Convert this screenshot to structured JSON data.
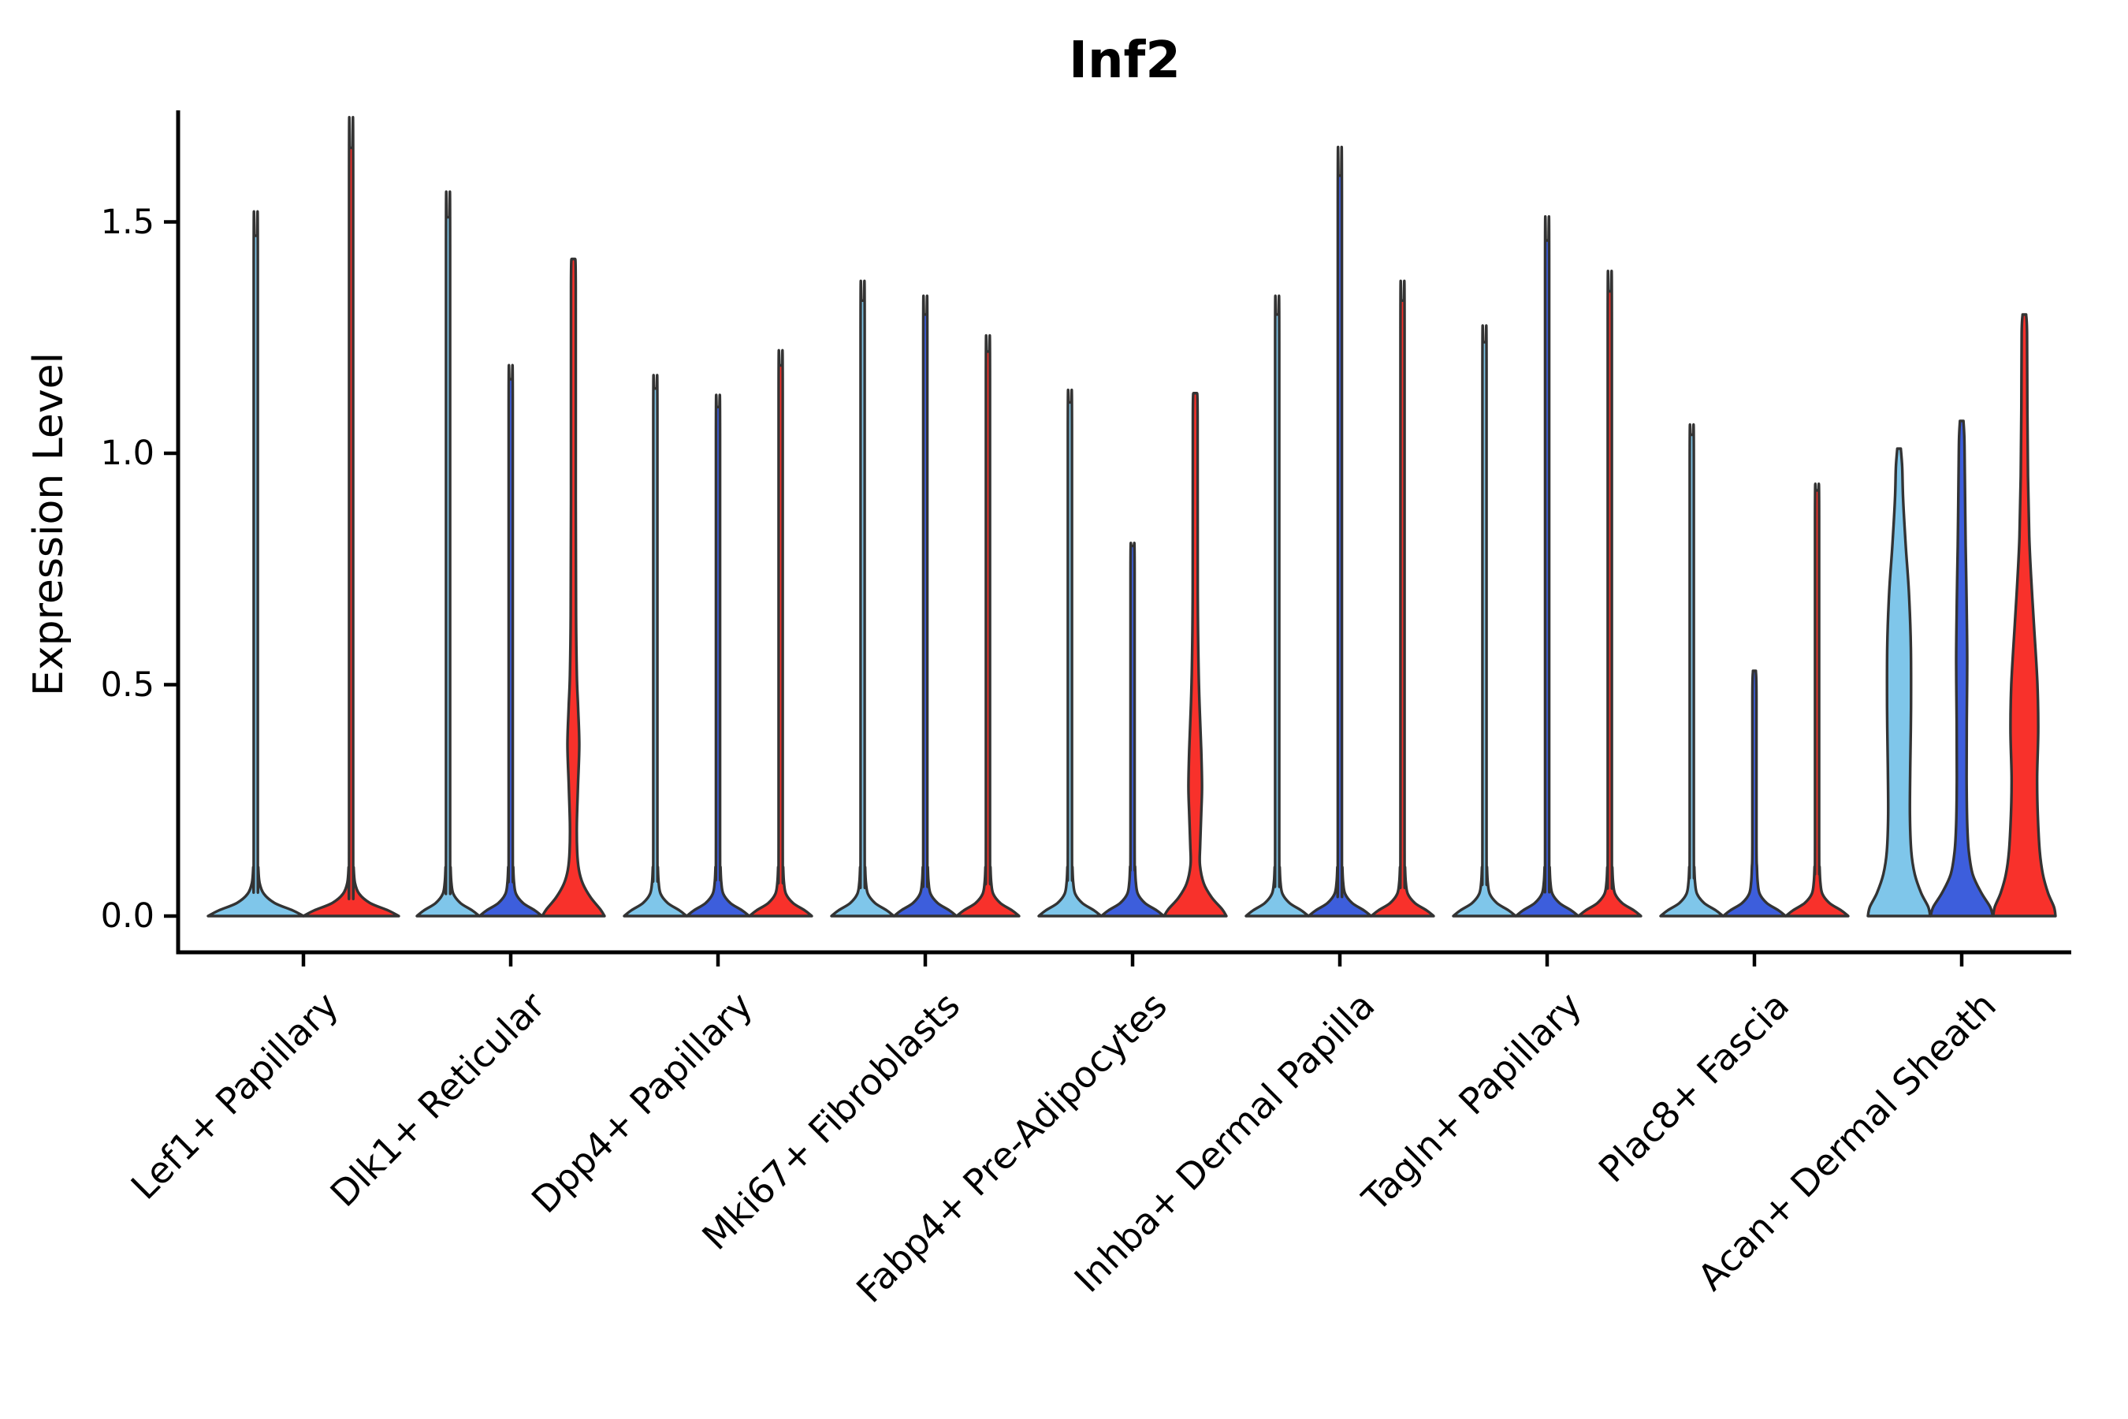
{
  "title": "Inf2",
  "ylabel": "Expression Level",
  "chart_data": {
    "type": "violin",
    "title": "Inf2",
    "xlabel": "",
    "ylabel": "Expression Level",
    "ylim": [
      -0.078,
      1.74
    ],
    "yticks": [
      "0.0",
      "0.5",
      "1.0",
      "1.5"
    ],
    "ytick_values": [
      0.0,
      0.5,
      1.0,
      1.5
    ],
    "grid": false,
    "legend": "none",
    "categories": [
      "Lef1+ Papillary",
      "Dlk1+ Reticular",
      "Dpp4+ Papillary",
      "Mki67+ Fibroblasts",
      "Fabp4+ Pre-Adipocytes",
      "Inhba+ Dermal Papilla",
      "Tagln+ Papillary",
      "Plac8+ Fascia",
      "Acan+ Dermal Sheath"
    ],
    "palette": {
      "light_blue": "#7FC6EA",
      "royal_blue": "#3D5EDC",
      "red": "#F8312B",
      "outline": "#333333",
      "axis": "#000000"
    },
    "note": "Each group shows up to 3 violins; most are collapsed spikes at expression 0 with a thin tail to max. max = top of violin tail in expression units. profile = [expression_value, half_width_px] pairs for violins with visible density bulges.",
    "groups": [
      {
        "label": "Lef1+ Papillary",
        "violins": [
          {
            "fill": "#7FC6EA",
            "max": 1.47,
            "shape": "spike"
          },
          {
            "fill": "#F8312B",
            "max": 1.66,
            "shape": "spike"
          }
        ]
      },
      {
        "label": "Dlk1+ Reticular",
        "violins": [
          {
            "fill": "#7FC6EA",
            "max": 1.51,
            "shape": "spike"
          },
          {
            "fill": "#3D5EDC",
            "max": 1.16,
            "shape": "spike"
          },
          {
            "fill": "#F8312B",
            "max": 1.42,
            "shape": "profile",
            "profile": [
              [
                0,
                39.5
              ],
              [
                0.015,
                34
              ],
              [
                0.04,
                22
              ],
              [
                0.07,
                12
              ],
              [
                0.1,
                7
              ],
              [
                0.14,
                4.8
              ],
              [
                0.2,
                4.4
              ],
              [
                0.28,
                5.8
              ],
              [
                0.37,
                7.5
              ],
              [
                0.45,
                6
              ],
              [
                0.52,
                4.4
              ],
              [
                0.65,
                3.4
              ],
              [
                0.9,
                3.0
              ],
              [
                1.36,
                3.0
              ],
              [
                1.42,
                2.0
              ]
            ]
          }
        ]
      },
      {
        "label": "Dpp4+ Papillary",
        "violins": [
          {
            "fill": "#7FC6EA",
            "max": 1.14,
            "shape": "spike"
          },
          {
            "fill": "#3D5EDC",
            "max": 1.1,
            "shape": "spike"
          },
          {
            "fill": "#F8312B",
            "max": 1.19,
            "shape": "spike"
          }
        ]
      },
      {
        "label": "Mki67+ Fibroblasts",
        "violins": [
          {
            "fill": "#7FC6EA",
            "max": 1.33,
            "shape": "spike"
          },
          {
            "fill": "#3D5EDC",
            "max": 1.3,
            "shape": "spike"
          },
          {
            "fill": "#F8312B",
            "max": 1.22,
            "shape": "spike"
          }
        ]
      },
      {
        "label": "Fabp4+ Pre-Adipocytes",
        "violins": [
          {
            "fill": "#7FC6EA",
            "max": 1.11,
            "shape": "spike"
          },
          {
            "fill": "#3D5EDC",
            "max": 0.8,
            "shape": "spike"
          },
          {
            "fill": "#F8312B",
            "max": 1.13,
            "shape": "profile",
            "profile": [
              [
                0,
                39.5
              ],
              [
                0.015,
                34
              ],
              [
                0.04,
                21
              ],
              [
                0.07,
                11
              ],
              [
                0.11,
                6
              ],
              [
                0.15,
                6.2
              ],
              [
                0.22,
                7.6
              ],
              [
                0.28,
                8.6
              ],
              [
                0.36,
                7.6
              ],
              [
                0.45,
                5.6
              ],
              [
                0.54,
                4.2
              ],
              [
                0.7,
                3.2
              ],
              [
                1.08,
                3.0
              ],
              [
                1.13,
                2.0
              ]
            ]
          }
        ]
      },
      {
        "label": "Inhba+ Dermal Papilla",
        "violins": [
          {
            "fill": "#7FC6EA",
            "max": 1.3,
            "shape": "spike"
          },
          {
            "fill": "#3D5EDC",
            "max": 1.6,
            "shape": "spike"
          },
          {
            "fill": "#F8312B",
            "max": 1.33,
            "shape": "spike"
          }
        ]
      },
      {
        "label": "Tagln+ Papillary",
        "violins": [
          {
            "fill": "#7FC6EA",
            "max": 1.24,
            "shape": "spike"
          },
          {
            "fill": "#3D5EDC",
            "max": 1.46,
            "shape": "spike"
          },
          {
            "fill": "#F8312B",
            "max": 1.35,
            "shape": "spike"
          }
        ]
      },
      {
        "label": "Plac8+ Fascia",
        "violins": [
          {
            "fill": "#7FC6EA",
            "max": 1.04,
            "shape": "spike"
          },
          {
            "fill": "#3D5EDC",
            "max": 0.53,
            "shape": "spike"
          },
          {
            "fill": "#F8312B",
            "max": 0.92,
            "shape": "spike"
          }
        ]
      },
      {
        "label": "Acan+ Dermal Sheath",
        "violins": [
          {
            "fill": "#7FC6EA",
            "max": 1.01,
            "shape": "profile",
            "profile": [
              [
                0,
                39.5
              ],
              [
                0.02,
                37
              ],
              [
                0.05,
                28
              ],
              [
                0.09,
                20
              ],
              [
                0.14,
                15.5
              ],
              [
                0.22,
                13.8
              ],
              [
                0.32,
                14.2
              ],
              [
                0.45,
                15.2
              ],
              [
                0.58,
                15.0
              ],
              [
                0.7,
                12.5
              ],
              [
                0.8,
                8.5
              ],
              [
                0.9,
                5.2
              ],
              [
                0.97,
                4.0
              ],
              [
                1.01,
                2.2
              ]
            ]
          },
          {
            "fill": "#3D5EDC",
            "max": 1.07,
            "shape": "profile",
            "profile": [
              [
                0,
                39.5
              ],
              [
                0.02,
                36
              ],
              [
                0.05,
                25
              ],
              [
                0.09,
                14
              ],
              [
                0.14,
                9
              ],
              [
                0.2,
                7
              ],
              [
                0.3,
                6.2
              ],
              [
                0.42,
                6.4
              ],
              [
                0.55,
                7.0
              ],
              [
                0.68,
                6.2
              ],
              [
                0.8,
                5.0
              ],
              [
                0.95,
                4.0
              ],
              [
                1.03,
                3.4
              ],
              [
                1.07,
                2.2
              ]
            ]
          },
          {
            "fill": "#F8312B",
            "max": 1.3,
            "shape": "profile",
            "profile": [
              [
                0,
                39.5
              ],
              [
                0.02,
                37.5
              ],
              [
                0.05,
                30
              ],
              [
                0.09,
                23.5
              ],
              [
                0.14,
                19.5
              ],
              [
                0.22,
                17
              ],
              [
                0.3,
                16.2
              ],
              [
                0.4,
                17.6
              ],
              [
                0.5,
                16.6
              ],
              [
                0.62,
                12.5
              ],
              [
                0.72,
                9.0
              ],
              [
                0.82,
                6.2
              ],
              [
                0.95,
                4.6
              ],
              [
                1.1,
                3.8
              ],
              [
                1.26,
                3.4
              ],
              [
                1.3,
                2.2
              ]
            ]
          }
        ]
      }
    ]
  }
}
